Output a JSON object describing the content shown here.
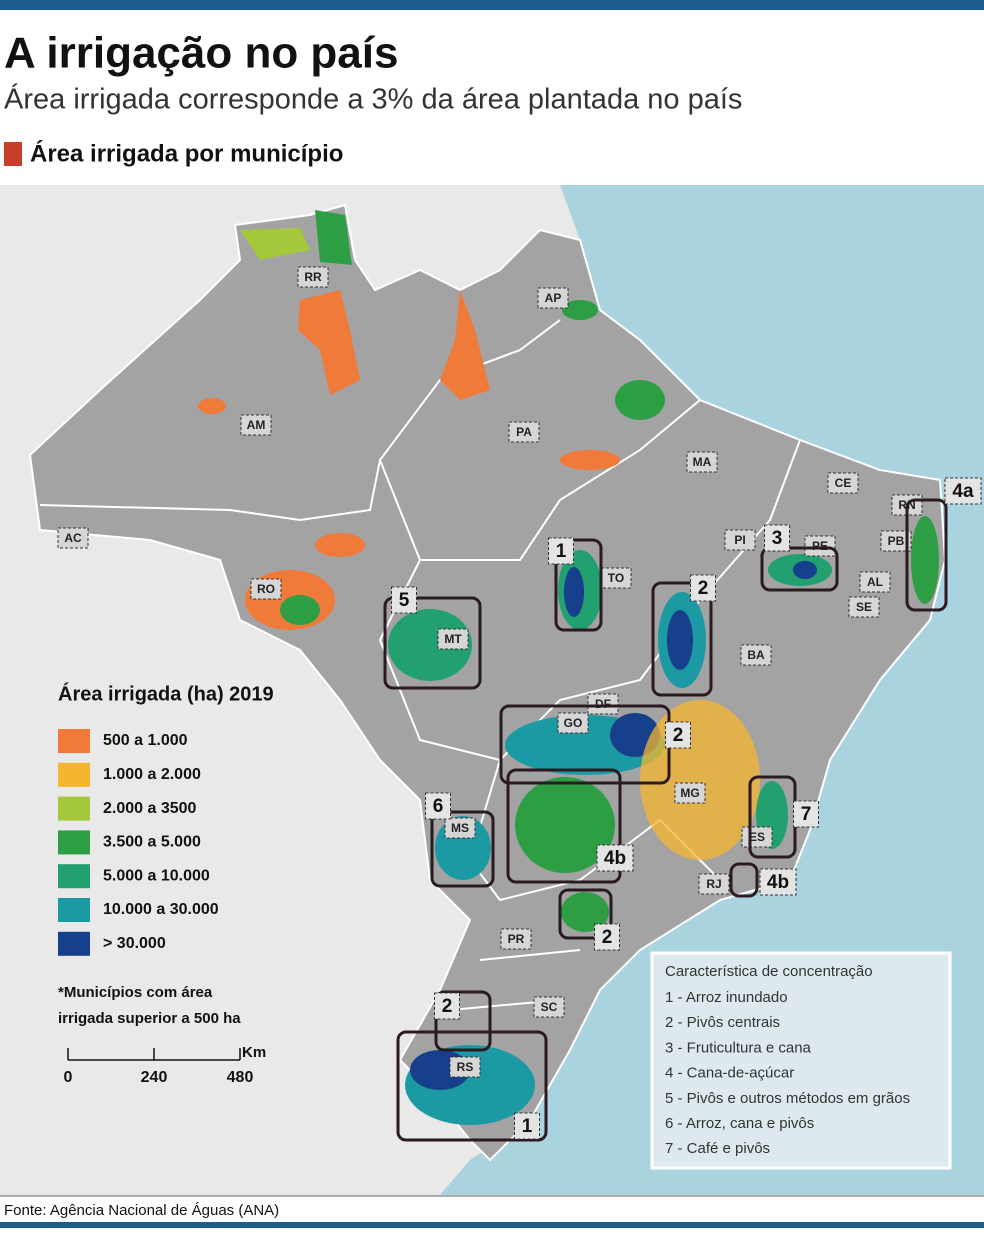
{
  "header": {
    "title": "A irrigação no país",
    "subtitle": "Área irrigada corresponde a 3% da área plantada no país"
  },
  "section": {
    "title": "Área irrigada por município"
  },
  "map": {
    "states": [
      "RR",
      "AP",
      "AM",
      "PA",
      "MA",
      "CE",
      "RN",
      "PB",
      "PI",
      "PE",
      "AL",
      "SE",
      "TO",
      "RO",
      "MT",
      "BA",
      "DF",
      "GO",
      "MG",
      "MS",
      "ES",
      "RJ",
      "PR",
      "SC",
      "RS",
      "AC"
    ],
    "regions": [
      "1",
      "2",
      "3",
      "4a",
      "5",
      "2",
      "4b",
      "6",
      "7",
      "4b",
      "2",
      "2",
      "1"
    ]
  },
  "legend": {
    "title": "Área irrigada (ha) 2019",
    "items": [
      {
        "label": "500 a 1.000",
        "color": "#f07a3a"
      },
      {
        "label": "1.000 a 2.000",
        "color": "#f5b52e"
      },
      {
        "label": "2.000 a 3500",
        "color": "#a5c83a"
      },
      {
        "label": "3.500 a 5.000",
        "color": "#2e9e44"
      },
      {
        "label": "5.000 a 10.000",
        "color": "#22a070"
      },
      {
        "label": "10.000 a 30.000",
        "color": "#1c9aa3"
      },
      {
        "label": "> 30.000",
        "color": "#163f8c"
      }
    ],
    "note": [
      "*Municípios com área",
      "irrigada superior a 500 ha"
    ],
    "scale": {
      "ticks": [
        0,
        240,
        480
      ],
      "unit": "Km"
    }
  },
  "concentration": {
    "title": "Característica de concentração",
    "items": [
      "1 - Arroz inundado",
      "2 - Pivôs centrais",
      "3 - Fruticultura e cana",
      "4 - Cana-de-açúcar",
      "5 - Pivôs e outros métodos em grãos",
      "6 - Arroz, cana e pivôs",
      "7 - Café e pivôs"
    ]
  },
  "source": "Fonte: Agência Nacional de Águas (ANA)"
}
